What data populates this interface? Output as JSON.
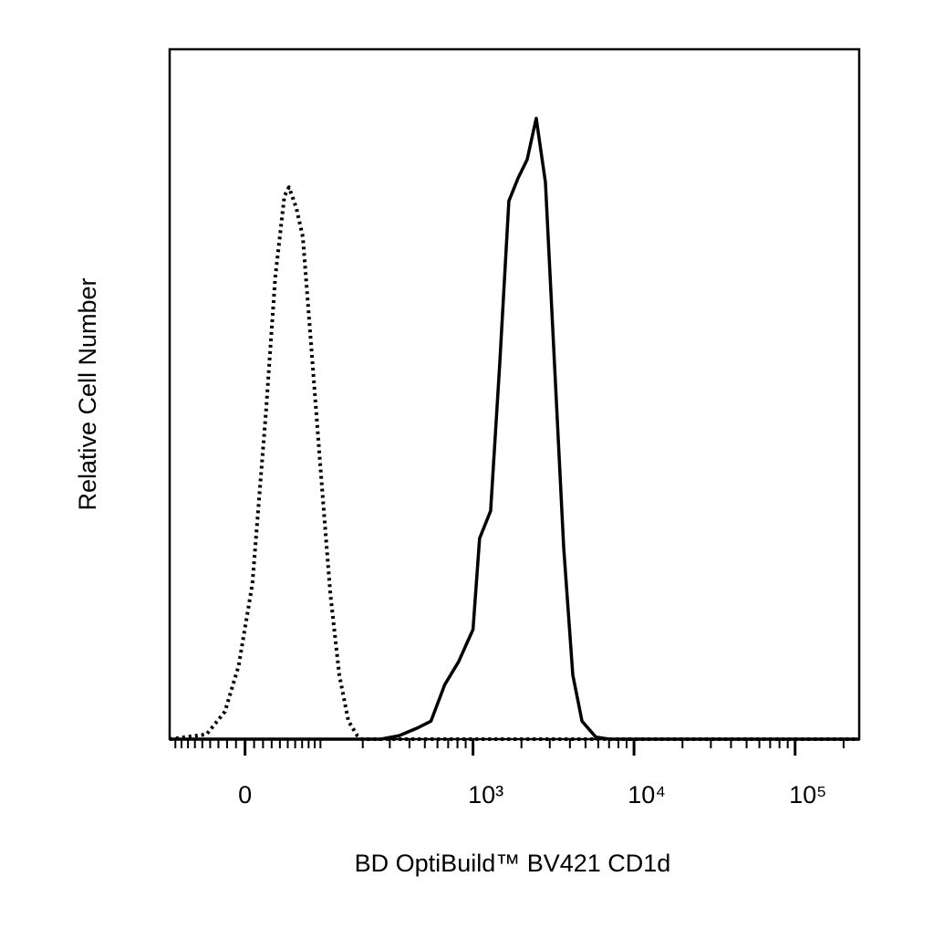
{
  "chart_data": {
    "type": "line",
    "xlabel": "BD OptiBuild™ BV421 CD1d",
    "ylabel": "Relative Cell Number",
    "xscale": "asinh",
    "xlim": [
      -100,
      250000
    ],
    "ylim": [
      0,
      100
    ],
    "xticks": [
      0,
      {
        "value": 1000,
        "label": "10³"
      },
      {
        "value": 10000,
        "label": "10⁴"
      },
      {
        "value": 100000,
        "label": "10⁵"
      }
    ],
    "xminorticks": [
      -90,
      -80,
      -70,
      -60,
      -50,
      -40,
      -30,
      -20,
      -10,
      10,
      20,
      30,
      40,
      50,
      60,
      70,
      80,
      90,
      100,
      200,
      300,
      400,
      500,
      600,
      700,
      800,
      900,
      2000,
      3000,
      4000,
      5000,
      6000,
      7000,
      8000,
      9000,
      20000,
      30000,
      40000,
      50000,
      60000,
      70000,
      80000,
      90000,
      200000
    ],
    "series": [
      {
        "color": "#000000",
        "style": "dotted",
        "x": [
          -100,
          -44.5,
          -22.5,
          -7.1,
          8.1,
          23.5,
          34.3,
          45.6,
          51.6,
          61.7,
          71,
          85.4,
          101,
          119,
          138,
          160,
          184,
          197,
          250000
        ],
        "values": [
          0,
          0.7,
          4,
          10.6,
          22.5,
          47.6,
          67,
          78.7,
          80,
          77,
          72.8,
          55.6,
          38.4,
          21,
          9.3,
          2.6,
          0.5,
          0,
          0
        ]
      },
      {
        "color": "#000000",
        "style": "solid",
        "x": [
          -100,
          262,
          343,
          447,
          546,
          666,
          812,
          1000,
          1098,
          1286,
          1464,
          1671,
          1903,
          2170,
          2472,
          2818,
          3211,
          3658,
          4170,
          4756,
          5790,
          7046,
          250000
        ],
        "values": [
          0,
          0,
          0.5,
          1.6,
          2.6,
          7.9,
          11.2,
          15.9,
          29.1,
          33.1,
          54.2,
          78,
          81.3,
          84,
          90,
          80.7,
          54.2,
          27.8,
          9.3,
          2.6,
          0.3,
          0,
          0
        ]
      }
    ]
  }
}
